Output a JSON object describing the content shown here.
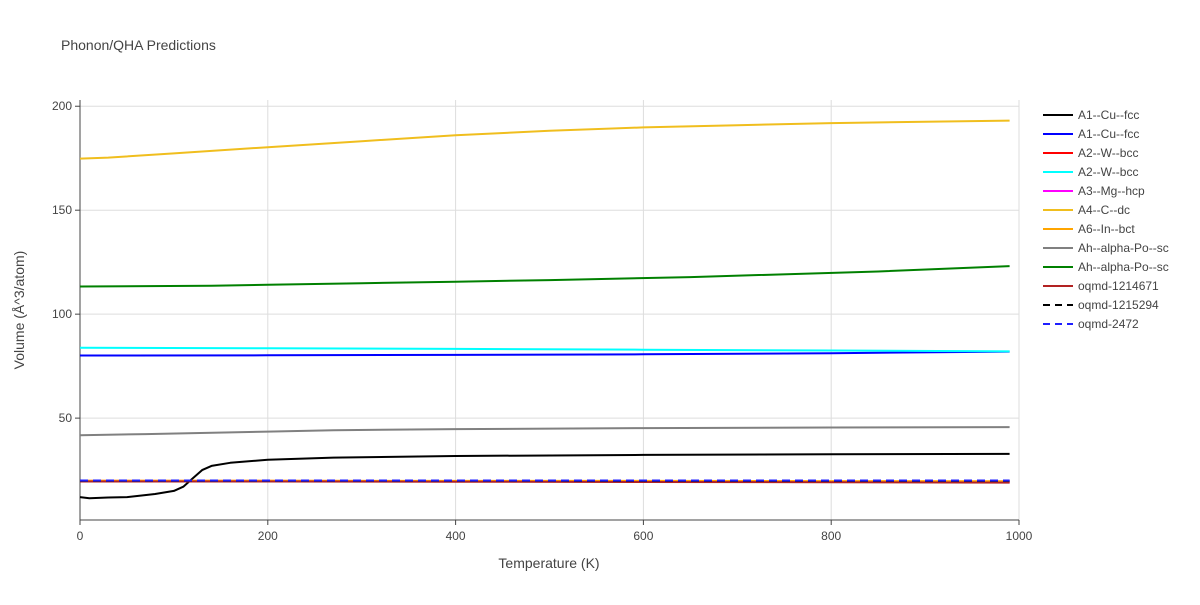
{
  "chart_data": {
    "type": "line",
    "title": "Phonon/QHA Predictions",
    "xlabel": "Temperature (K)",
    "ylabel": "Volume (Å^3/atom)",
    "xlim": [
      0,
      1000
    ],
    "ylim": [
      1,
      203
    ],
    "xticks": [
      0,
      200,
      400,
      600,
      800,
      1000
    ],
    "yticks": [
      50,
      100,
      150,
      200
    ],
    "grid": true,
    "legend_position": "right",
    "series": [
      {
        "name": "A1--Cu--fcc",
        "color": "#000000",
        "dash": "solid",
        "x": [
          0,
          10,
          30,
          50,
          80,
          100,
          110,
          120,
          130,
          140,
          160,
          200,
          270,
          400,
          600,
          800,
          990
        ],
        "y": [
          12.0,
          11.5,
          11.8,
          12.0,
          13.5,
          15.0,
          17.0,
          21.0,
          25.0,
          27.0,
          28.5,
          30.0,
          31.0,
          31.8,
          32.3,
          32.6,
          32.8
        ]
      },
      {
        "name": "A1--Cu--fcc",
        "color": "#0000ff",
        "dash": "solid",
        "x": [
          0,
          200,
          400,
          600,
          800,
          990
        ],
        "y": [
          80.1,
          80.2,
          80.4,
          80.7,
          81.2,
          82.0
        ]
      },
      {
        "name": "A2--W--bcc",
        "color": "#ff0000",
        "dash": "solid",
        "x": [
          0,
          200,
          400,
          600,
          800,
          990
        ],
        "y": [
          19.8,
          19.8,
          19.7,
          19.6,
          19.4,
          19.2
        ]
      },
      {
        "name": "A2--W--bcc",
        "color": "#00ffff",
        "dash": "solid",
        "x": [
          0,
          200,
          400,
          600,
          800,
          990
        ],
        "y": [
          83.8,
          83.6,
          83.3,
          82.9,
          82.5,
          82.1
        ]
      },
      {
        "name": "A3--Mg--hcp",
        "color": "#ff00ff",
        "dash": "solid",
        "x": [
          0,
          200,
          400,
          600,
          800,
          990
        ],
        "y": [
          19.7,
          19.7,
          19.6,
          19.5,
          19.4,
          19.3
        ]
      },
      {
        "name": "A4--C--dc",
        "color": "#f0be1e",
        "dash": "solid",
        "x": [
          0,
          30,
          100,
          200,
          300,
          400,
          500,
          600,
          700,
          800,
          900,
          990
        ],
        "y": [
          174.8,
          175.3,
          177.3,
          180.3,
          183.2,
          186.0,
          188.2,
          189.8,
          190.9,
          191.9,
          192.5,
          193.1
        ]
      },
      {
        "name": "A6--In--bct",
        "color": "#ffa500",
        "dash": "solid",
        "x": [
          0,
          200,
          400,
          600,
          800,
          990
        ],
        "y": [
          19.9,
          19.9,
          19.8,
          19.8,
          19.7,
          19.6
        ]
      },
      {
        "name": "Ah--alpha-Po--sc",
        "color": "#808080",
        "dash": "solid",
        "x": [
          0,
          70,
          200,
          270,
          400,
          600,
          800,
          990
        ],
        "y": [
          41.8,
          42.3,
          43.5,
          44.2,
          44.7,
          45.2,
          45.5,
          45.7
        ]
      },
      {
        "name": "Ah--alpha-Po--sc",
        "color": "#008000",
        "dash": "solid",
        "x": [
          0,
          140,
          200,
          300,
          400,
          500,
          650,
          850,
          990
        ],
        "y": [
          113.3,
          113.7,
          114.1,
          114.9,
          115.6,
          116.4,
          117.8,
          120.5,
          123.1
        ]
      },
      {
        "name": "oqmd-1214671",
        "color": "#b22222",
        "dash": "solid",
        "x": [
          0,
          200,
          400,
          600,
          800,
          990
        ],
        "y": [
          19.5,
          19.5,
          19.4,
          19.3,
          19.2,
          19.0
        ]
      },
      {
        "name": "oqmd-1215294",
        "color": "#000000",
        "dash": "dash",
        "x": [
          0,
          200,
          400,
          600,
          800,
          990
        ],
        "y": [
          19.9,
          19.9,
          19.9,
          19.8,
          19.8,
          19.8
        ]
      },
      {
        "name": "oqmd-2472",
        "color": "#1f1fff",
        "dash": "dash",
        "x": [
          0,
          200,
          400,
          600,
          800,
          990
        ],
        "y": [
          20.0,
          20.0,
          20.0,
          20.0,
          20.0,
          20.0
        ]
      }
    ]
  }
}
